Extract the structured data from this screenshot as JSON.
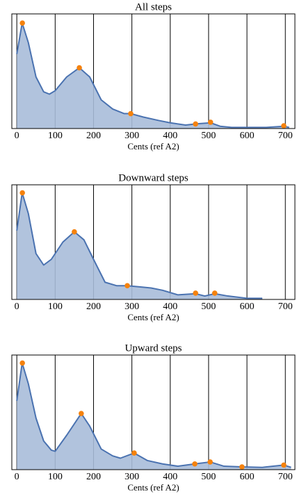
{
  "chart_data": [
    {
      "type": "area",
      "title": "All steps",
      "xlabel": "Cents (ref A2)",
      "x": [
        0,
        14,
        30,
        50,
        70,
        85,
        100,
        130,
        163,
        190,
        220,
        250,
        280,
        297,
        330,
        370,
        400,
        440,
        466,
        505,
        530,
        560,
        600,
        650,
        696,
        710
      ],
      "values": [
        65,
        92,
        75,
        45,
        32,
        30,
        33,
        45,
        53,
        45,
        25,
        17,
        13,
        13,
        10,
        7,
        5,
        3,
        4,
        5,
        2,
        1,
        1,
        1,
        2,
        1
      ],
      "color": "#4a72b0",
      "fill": "#a9bcd9",
      "markers": {
        "x": [
          14.5,
          163,
          297,
          466,
          505,
          696
        ],
        "values": [
          92,
          53,
          13,
          4,
          5.5,
          2.4
        ],
        "color": "#f5820d"
      },
      "xlim": [
        -13,
        725
      ],
      "ylim": [
        0,
        100
      ],
      "xticks": [
        0,
        100,
        200,
        300,
        400,
        500,
        600,
        700
      ],
      "grid": true
    },
    {
      "type": "area",
      "title": "Downward steps",
      "xlabel": "Cents (ref A2)",
      "x": [
        0,
        14,
        30,
        50,
        70,
        90,
        120,
        150,
        175,
        200,
        230,
        260,
        288,
        320,
        350,
        380,
        420,
        466,
        490,
        516,
        550,
        600,
        640
      ],
      "values": [
        60,
        93,
        75,
        40,
        30,
        35,
        50,
        59,
        52,
        35,
        15,
        12,
        12,
        11,
        10,
        8,
        4,
        5,
        3,
        5,
        3,
        1,
        1
      ],
      "color": "#4a72b0",
      "fill": "#a9bcd9",
      "markers": {
        "x": [
          14.5,
          150,
          288,
          466,
          516
        ],
        "values": [
          93,
          59,
          12,
          5.5,
          5.5
        ],
        "color": "#f5820d"
      },
      "xlim": [
        -13,
        725
      ],
      "ylim": [
        0,
        100
      ],
      "xticks": [
        0,
        100,
        200,
        300,
        400,
        500,
        600,
        700
      ],
      "grid": true
    },
    {
      "type": "area",
      "title": "Upward steps",
      "xlabel": "Cents (ref A2)",
      "x": [
        0,
        14,
        30,
        50,
        70,
        90,
        100,
        130,
        168,
        190,
        220,
        250,
        270,
        306,
        340,
        380,
        420,
        464,
        504,
        540,
        587,
        640,
        696,
        715
      ],
      "values": [
        60,
        93,
        75,
        45,
        25,
        17,
        16,
        30,
        49,
        38,
        18,
        12,
        10,
        14.5,
        8,
        5,
        3,
        5,
        6.7,
        3,
        2.4,
        2,
        4,
        2
      ],
      "color": "#4a72b0",
      "fill": "#a9bcd9",
      "markers": {
        "x": [
          14.5,
          168,
          306,
          464,
          504,
          587,
          696
        ],
        "values": [
          93,
          49,
          14.5,
          5,
          6.7,
          2.4,
          4
        ],
        "color": "#f5820d"
      },
      "xlim": [
        -13,
        725
      ],
      "ylim": [
        0,
        100
      ],
      "xticks": [
        0,
        100,
        200,
        300,
        400,
        500,
        600,
        700
      ],
      "grid": true
    }
  ]
}
